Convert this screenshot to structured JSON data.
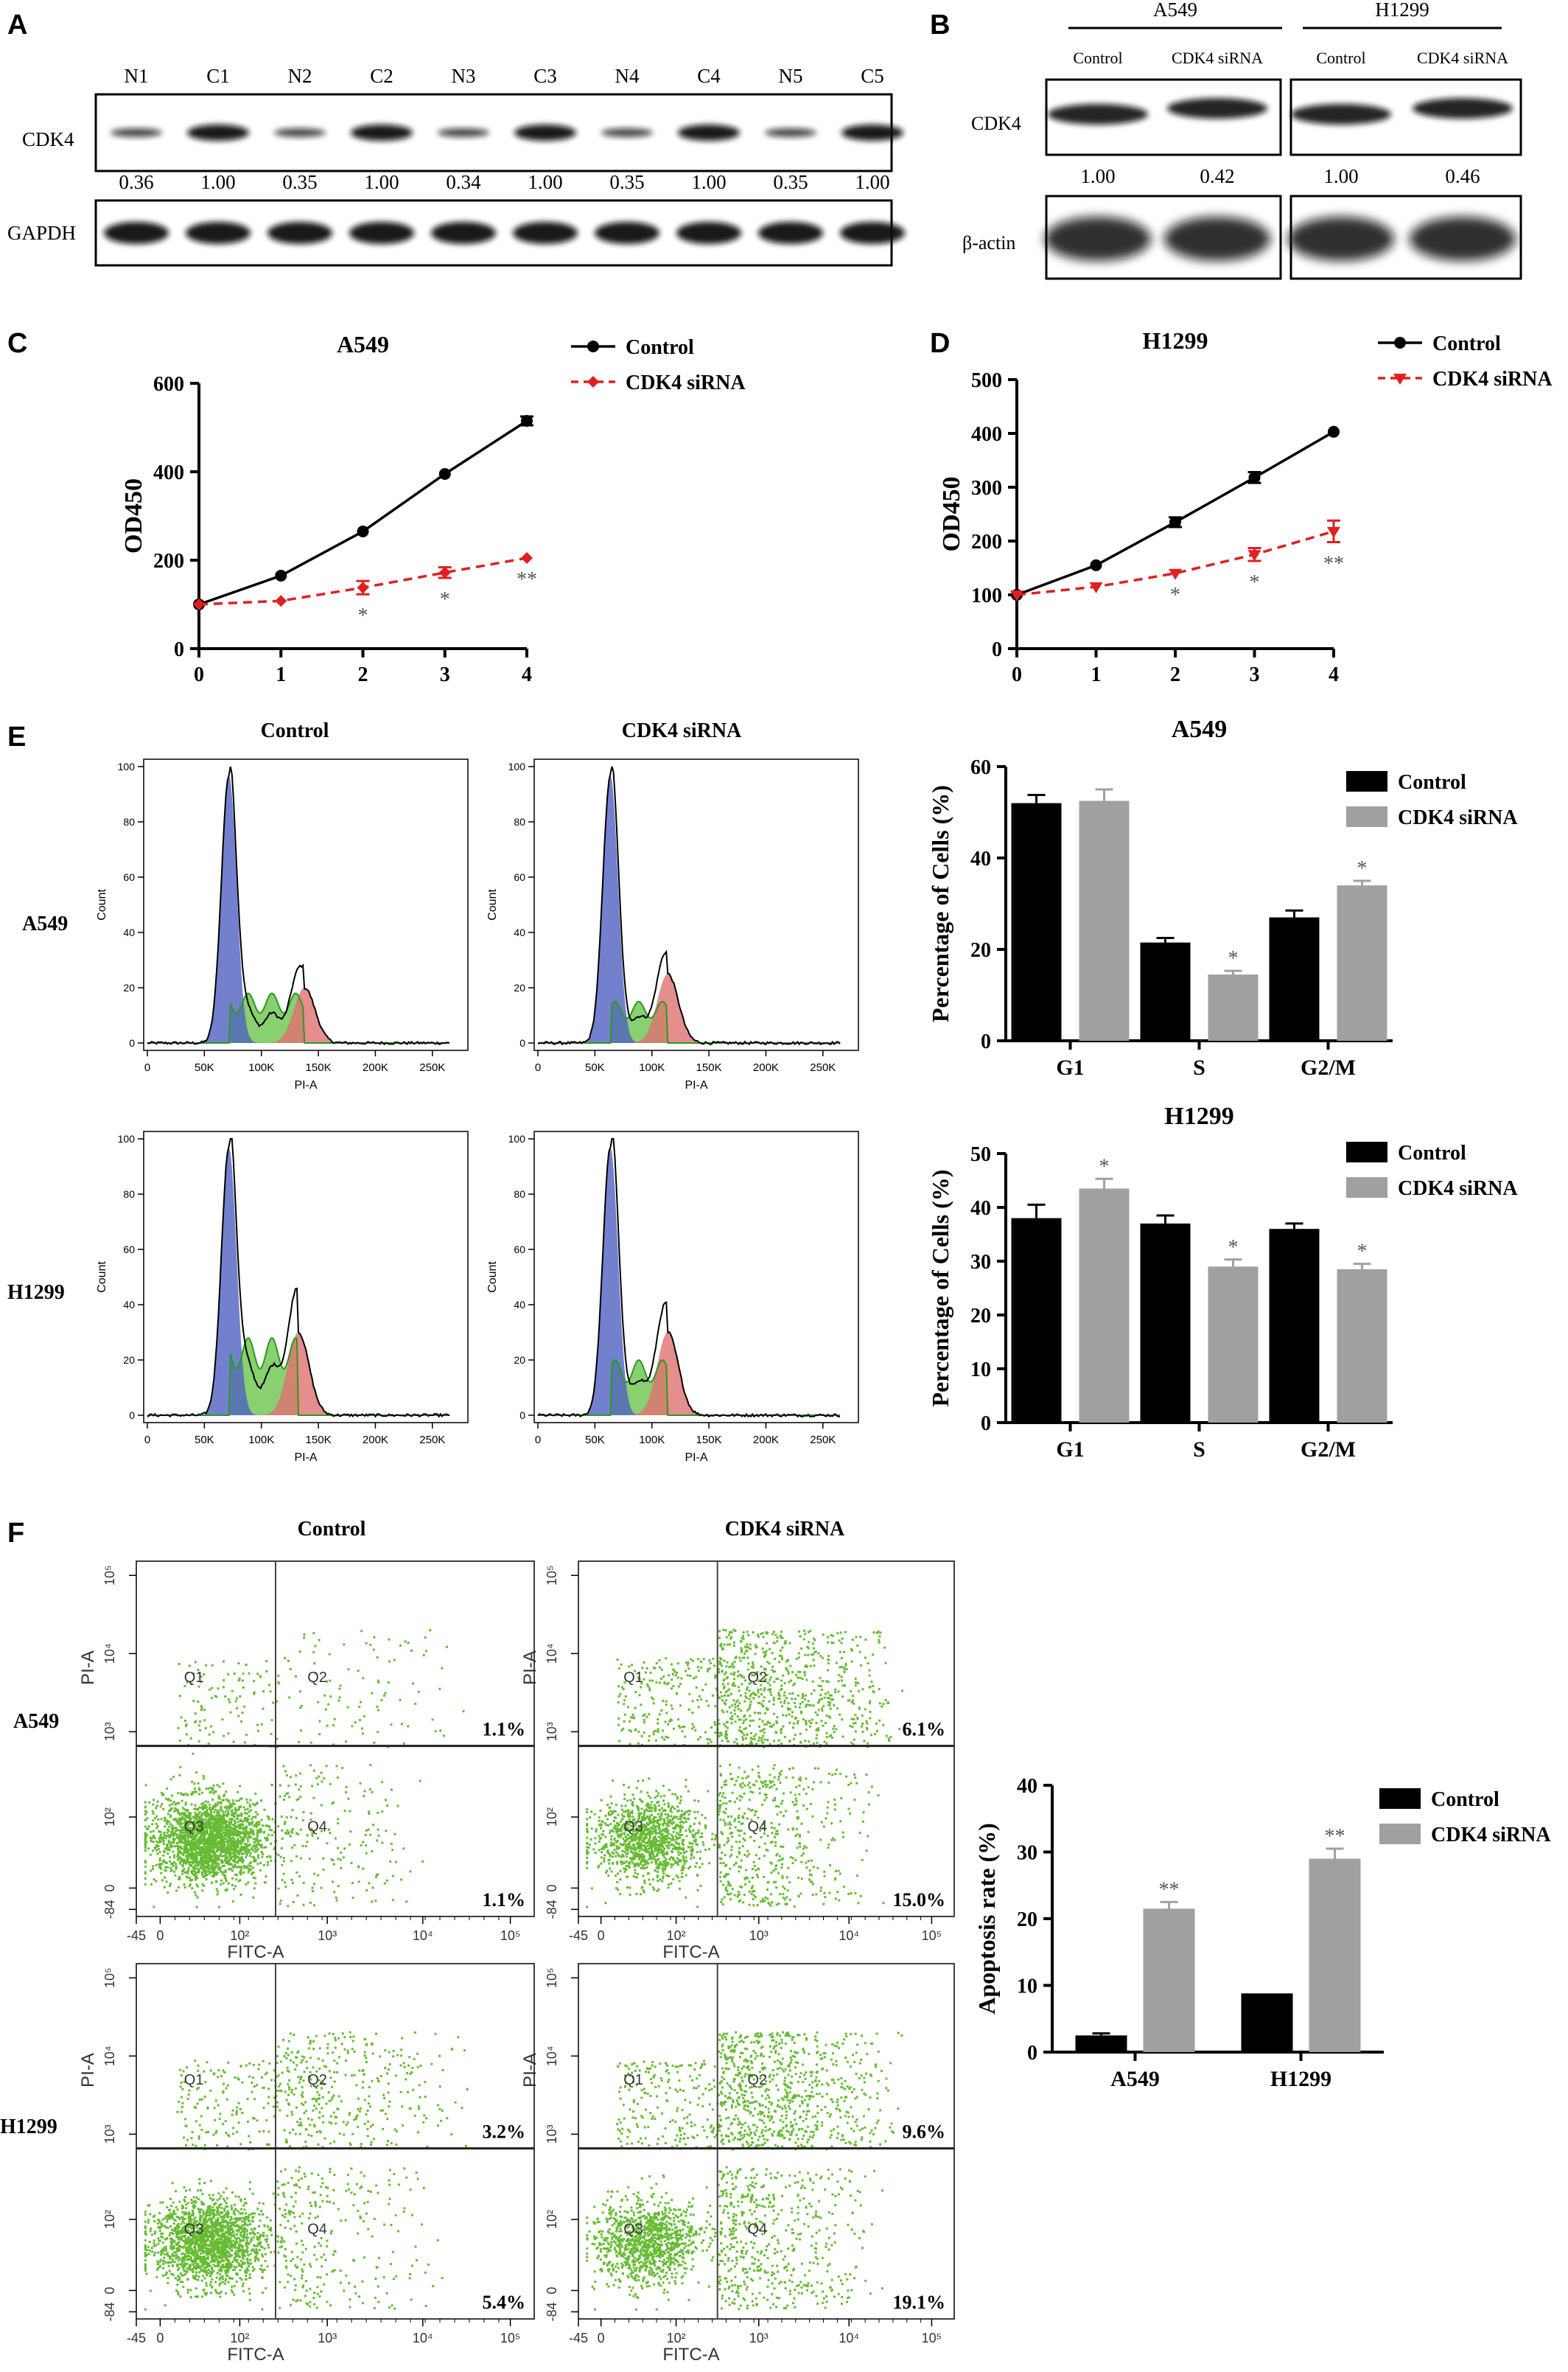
{
  "panelA": {
    "letter": "A",
    "lanes": [
      "N1",
      "C1",
      "N2",
      "C2",
      "N3",
      "C3",
      "N4",
      "C4",
      "N5",
      "C5"
    ],
    "row1_label": "CDK4",
    "ratios": [
      "0.36",
      "1.00",
      "0.35",
      "1.00",
      "0.34",
      "1.00",
      "0.35",
      "1.00",
      "0.35",
      "1.00"
    ],
    "row2_label": "GAPDH"
  },
  "panelB": {
    "letter": "B",
    "group1": "A549",
    "group2": "H1299",
    "col_labels": [
      "Control",
      "CDK4 siRNA",
      "Control",
      "CDK4 siRNA"
    ],
    "row1_label": "CDK4",
    "ratios": [
      "1.00",
      "0.42",
      "1.00",
      "0.46"
    ],
    "row2_label": "β-actin"
  },
  "panelC": {
    "letter": "C"
  },
  "panelD": {
    "letter": "D"
  },
  "panelE": {
    "letter": "E",
    "col1": "Control",
    "col2": "CDK4 siRNA",
    "row1": "A549",
    "row2": "H1299",
    "hist_xaxis": "PI-A",
    "hist_yaxis": "Count",
    "hist_xticks": [
      "0",
      "50K",
      "100K",
      "150K",
      "200K",
      "250K"
    ],
    "hist_yticks": [
      "0",
      "20",
      "40",
      "60",
      "80",
      "100"
    ],
    "hist_colors": {
      "g1": "#5060c0",
      "s": "#60c040",
      "g2m": "#e07070"
    }
  },
  "panelF": {
    "letter": "F",
    "col1": "Control",
    "col2": "CDK4 siRNA",
    "row1": "A549",
    "row2": "H1299",
    "xaxis": "FITC-A",
    "yaxis": "PI-A",
    "quadrants": [
      "Q1",
      "Q2",
      "Q3",
      "Q4"
    ],
    "xticks": [
      "-45",
      "0",
      "10²",
      "10³",
      "10⁴",
      "10⁵"
    ],
    "yticks": [
      "-84",
      "0",
      "10²",
      "10³",
      "10⁴",
      "10⁵"
    ],
    "dot_color": "#66bb33",
    "plots": [
      {
        "upper": "1.1%",
        "lower": "1.1%"
      },
      {
        "upper": "6.1%",
        "lower": "15.0%"
      },
      {
        "upper": "3.2%",
        "lower": "5.4%"
      },
      {
        "upper": "9.6%",
        "lower": "19.1%"
      }
    ]
  },
  "chart_data": [
    {
      "id": "C",
      "type": "line",
      "title": "A549",
      "xlabel": "",
      "ylabel": "OD450",
      "x": [
        0,
        1,
        2,
        3,
        4
      ],
      "xlim": [
        0,
        4
      ],
      "ylim": [
        0,
        600
      ],
      "yticks": [
        0,
        200,
        400,
        600
      ],
      "legend": "top-right",
      "series": [
        {
          "name": "Control",
          "color": "#000000",
          "values": [
            100,
            165,
            265,
            395,
            515
          ],
          "errors": [
            0,
            0,
            0,
            0,
            10
          ]
        },
        {
          "name": "CDK4 siRNA",
          "color": "#e02020",
          "values": [
            100,
            108,
            138,
            172,
            205
          ],
          "errors": [
            0,
            0,
            15,
            12,
            0
          ]
        }
      ],
      "annotations": [
        "",
        "",
        "*",
        "*",
        "**"
      ]
    },
    {
      "id": "D",
      "type": "line",
      "title": "H1299",
      "xlabel": "",
      "ylabel": "OD450",
      "x": [
        0,
        1,
        2,
        3,
        4
      ],
      "xlim": [
        0,
        4
      ],
      "ylim": [
        0,
        500
      ],
      "yticks": [
        0,
        100,
        200,
        300,
        400,
        500
      ],
      "legend": "top-right",
      "series": [
        {
          "name": "Control",
          "color": "#000000",
          "values": [
            100,
            155,
            235,
            318,
            403
          ],
          "errors": [
            0,
            0,
            9,
            10,
            0
          ]
        },
        {
          "name": "CDK4 siRNA",
          "color": "#e02020",
          "values": [
            100,
            115,
            140,
            175,
            218
          ],
          "errors": [
            0,
            0,
            0,
            12,
            20
          ]
        }
      ],
      "annotations": [
        "",
        "",
        "*",
        "*",
        "**"
      ]
    },
    {
      "id": "E1",
      "type": "bar",
      "title": "A549",
      "xlabel": "",
      "ylabel": "Percentage of Cells (%)",
      "categories": [
        "G1",
        "S",
        "G2/M"
      ],
      "ylim": [
        0,
        60
      ],
      "yticks": [
        0,
        20,
        40,
        60
      ],
      "legend": "top-right",
      "series": [
        {
          "name": "Control",
          "color": "#000000",
          "values": [
            52,
            21.5,
            27
          ],
          "errors": [
            1.8,
            1,
            1.5
          ]
        },
        {
          "name": "CDK4 siRNA",
          "color": "#a0a0a0",
          "values": [
            52.5,
            14.5,
            34
          ],
          "errors": [
            2.5,
            0.8,
            1
          ]
        }
      ],
      "annotations": [
        "",
        "*",
        "*"
      ]
    },
    {
      "id": "E2",
      "type": "bar",
      "title": "H1299",
      "xlabel": "",
      "ylabel": "Percentage of Cells (%)",
      "categories": [
        "G1",
        "S",
        "G2/M"
      ],
      "ylim": [
        0,
        50
      ],
      "yticks": [
        0,
        10,
        20,
        30,
        40,
        50
      ],
      "legend": "top-right",
      "series": [
        {
          "name": "Control",
          "color": "#000000",
          "values": [
            38,
            37,
            36
          ],
          "errors": [
            2.5,
            1.5,
            1
          ]
        },
        {
          "name": "CDK4 siRNA",
          "color": "#a0a0a0",
          "values": [
            43.5,
            29,
            28.5
          ],
          "errors": [
            1.8,
            1.3,
            1
          ]
        }
      ],
      "annotations": [
        "*",
        "*",
        "*"
      ]
    },
    {
      "id": "F",
      "type": "bar",
      "title": "",
      "xlabel": "",
      "ylabel": "Apoptosis rate (%)",
      "categories": [
        "A549",
        "H1299"
      ],
      "ylim": [
        0,
        40
      ],
      "yticks": [
        0,
        10,
        20,
        30,
        40
      ],
      "legend": "top-right",
      "series": [
        {
          "name": "Control",
          "color": "#000000",
          "values": [
            2.5,
            8.8
          ],
          "errors": [
            0.3,
            0
          ]
        },
        {
          "name": "CDK4 siRNA",
          "color": "#a0a0a0",
          "values": [
            21.5,
            29
          ],
          "errors": [
            1,
            1.5
          ]
        }
      ],
      "annotations": [
        "**",
        "**"
      ]
    }
  ]
}
